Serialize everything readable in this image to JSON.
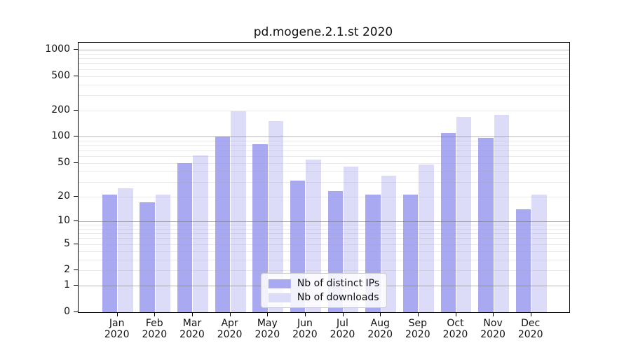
{
  "title": "pd.mogene.2.1.st 2020",
  "legend": {
    "items": [
      {
        "label": "Nb of distinct IPs",
        "color": "#a9a9f1"
      },
      {
        "label": "Nb of downloads",
        "color": "#dcdcf9"
      }
    ]
  },
  "chart_data": {
    "type": "bar",
    "title": "pd.mogene.2.1.st 2020",
    "xlabel": "",
    "ylabel": "",
    "categories": [
      "Jan\n2020",
      "Feb\n2020",
      "Mar\n2020",
      "Apr\n2020",
      "May\n2020",
      "Jun\n2020",
      "Jul\n2020",
      "Aug\n2020",
      "Sep\n2020",
      "Oct\n2020",
      "Nov\n2020",
      "Dec\n2020"
    ],
    "series": [
      {
        "name": "Nb of distinct IPs",
        "color": "#a9a9f1",
        "values": [
          21,
          17,
          50,
          101,
          82,
          31,
          23,
          21,
          21,
          110,
          98,
          14
        ]
      },
      {
        "name": "Nb of downloads",
        "color": "#dcdcf9",
        "values": [
          25,
          21,
          61,
          197,
          153,
          54,
          45,
          35,
          48,
          169,
          180,
          21
        ]
      }
    ],
    "yscale": "log1p",
    "ylim": [
      0,
      1200
    ],
    "yticks": [
      0,
      1,
      2,
      5,
      10,
      20,
      50,
      100,
      200,
      500,
      1000
    ],
    "major_gridlines": [
      1,
      10,
      100,
      1000
    ],
    "minor_gridlines": [
      2,
      3,
      4,
      5,
      6,
      7,
      8,
      9,
      20,
      30,
      40,
      50,
      60,
      70,
      80,
      90,
      200,
      300,
      400,
      500,
      600,
      700,
      800,
      900
    ],
    "grid": true,
    "legend_position": "lower center",
    "bar_style": "grouped pairs, translucent, gridlines visible through bars"
  }
}
